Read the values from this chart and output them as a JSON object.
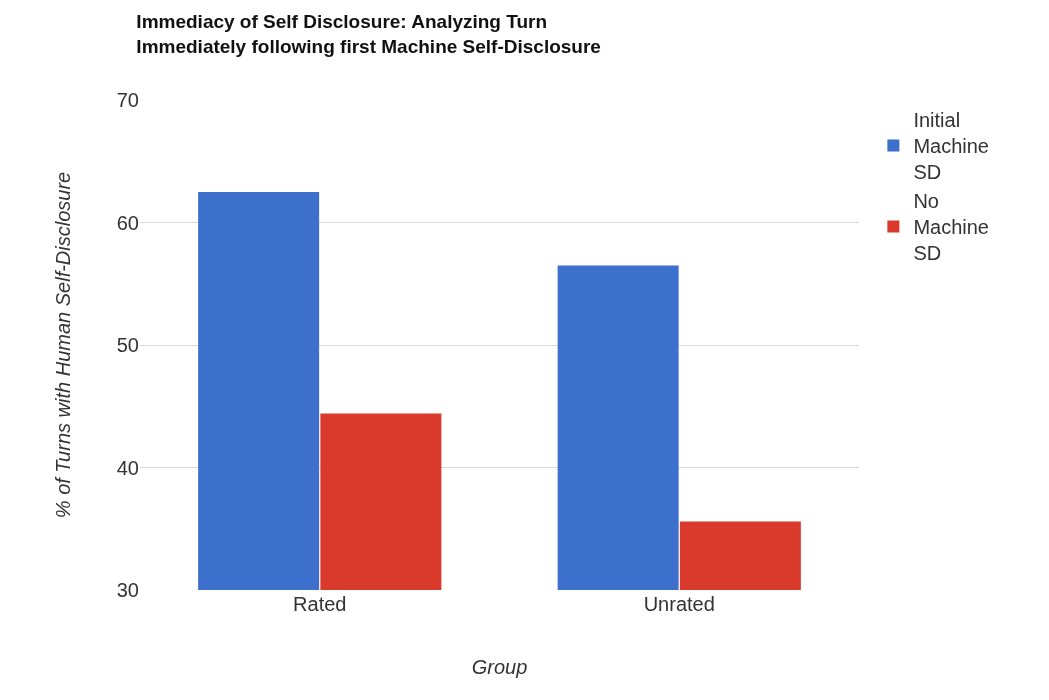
{
  "chart_data": {
    "type": "bar",
    "title": "Immediacy of Self Disclosure: Analyzing Turn Immediately following first Machine Self-Disclosure",
    "xlabel": "Group",
    "ylabel": "% of Turns with Human Self-Disclosure",
    "categories": [
      "Rated",
      "Unrated"
    ],
    "series": [
      {
        "name": "Initial Machine SD",
        "color": "#3d6fcc",
        "values": [
          62.5,
          56.5
        ]
      },
      {
        "name": "No Machine SD",
        "color": "#d93a2b",
        "values": [
          44.4,
          35.6
        ]
      }
    ],
    "ylim": [
      30,
      70
    ],
    "yticks": [
      30,
      40,
      50,
      60,
      70
    ],
    "grid": "y",
    "legend": "top right"
  }
}
